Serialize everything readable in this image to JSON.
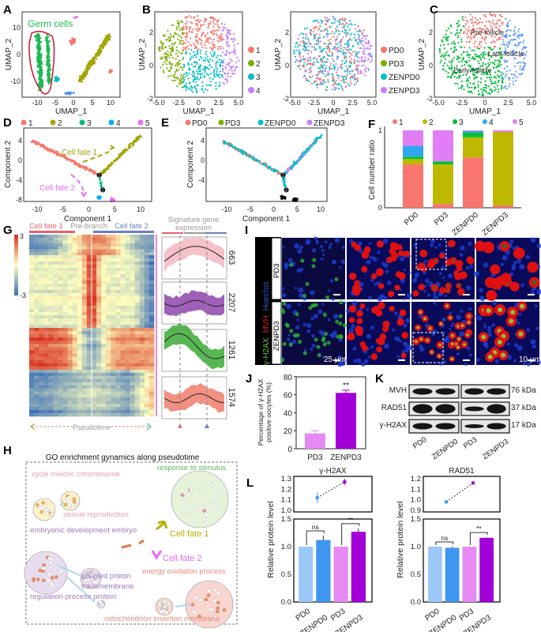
{
  "panel_labels": [
    "A",
    "B",
    "C",
    "D",
    "E",
    "F",
    "G",
    "H",
    "I",
    "J",
    "K",
    "L"
  ],
  "colors": {
    "c1": "#F8766D",
    "c2": "#A3A500",
    "c3": "#00BF7D",
    "c4": "#00B0F6",
    "c5": "#E76BF3",
    "b1": "#F8766D",
    "b2": "#7CAE00",
    "b3": "#00BFC4",
    "b4": "#C77CFF",
    "germ": "#1DB954",
    "heat_low": "#3B6FB6",
    "heat_mid": "#FFFFBF",
    "heat_high": "#D7301F"
  },
  "panel_a": {
    "annotation": "Germ cells",
    "xlabel": "UMAP_1",
    "ylabel": "UMAP_2",
    "xticks": [
      "-10",
      "-5",
      "0",
      "5",
      "10"
    ],
    "yticks": [
      "10",
      "0",
      "-10"
    ]
  },
  "panel_b": {
    "xlabel": "UMAP_1",
    "ylabel": "UMAP_2",
    "xticks": [
      "-5.0",
      "-2.5",
      "0",
      "2.5",
      "5.0"
    ],
    "yticks": [
      "2",
      "0",
      "-2"
    ],
    "legend_cluster": [
      "1",
      "2",
      "3",
      "4"
    ],
    "legend_sample": [
      "PD0",
      "PD3",
      "ZENPD0",
      "ZENPD3"
    ]
  },
  "panel_c": {
    "xlabel": "UMAP_1",
    "ylabel": "UMAP_2",
    "labels": [
      "Pre-follicle",
      "Late-follicle",
      "Early-follicle"
    ]
  },
  "panel_d": {
    "legend": [
      "1",
      "2",
      "3",
      "4",
      "5"
    ],
    "fate1": "Cell fate 1",
    "fate2": "Cell fate 2",
    "xlabel": "Component 1",
    "ylabel": "Component 2",
    "xticks": [
      "-10",
      "-5",
      "0",
      "5",
      "10"
    ],
    "yticks": [
      "4",
      "0",
      "-4",
      "-8"
    ],
    "branch_labels": [
      "1",
      "2"
    ]
  },
  "panel_e": {
    "legend": [
      "PD0",
      "PD3",
      "ZENPD0",
      "ZENPD3"
    ],
    "xlabel": "Component 1",
    "ylabel": "Component 2",
    "xticks": [
      "-10",
      "-5",
      "0",
      "5",
      "10"
    ],
    "yticks": [
      "4",
      "0",
      "-4"
    ]
  },
  "panel_g": {
    "header_fate1": "Cell fate 1",
    "header_pre": "Pre-branch",
    "header_fate2": "Cell fate 2",
    "colorbar_max": "3",
    "colorbar_min": "-3",
    "signature_title_1": "Signature gene",
    "signature_title_2": "expression",
    "cluster_counts": [
      "663",
      "2207",
      "1261",
      "1574"
    ],
    "cluster_colors": [
      "#F4B6C2",
      "#8E44AD",
      "#3AAA35",
      "#F07D6B"
    ],
    "pseudotime": "Pseudotime"
  },
  "panel_h": {
    "title": "GO enrichment gynamics along pseudotime",
    "terms": [
      "cycle meiotic chromosome",
      "sexual reproduction",
      "embryonic development embryo",
      "coupled proton",
      "transmembrane",
      "regulation process protein",
      "response to stimulus",
      "Cell fate 1",
      "Cell fate 2",
      "energy oxidation process",
      "mitochondrion insertion membrane"
    ]
  },
  "panel_i": {
    "channels": [
      "Hoechst",
      "MVH",
      "γ-H2AX"
    ],
    "rows": [
      "PD3",
      "ZENPD3"
    ],
    "scale_bar_1": "25 µm",
    "scale_bar_2": "10 µm"
  },
  "panel_k": {
    "proteins": [
      {
        "name": "MVH",
        "kda": "76 kDa"
      },
      {
        "name": "RAD51",
        "kda": "37 kDa"
      },
      {
        "name": "γ-H2AX",
        "kda": "17 kDa"
      }
    ],
    "lanes": [
      "PD0",
      "ZENPD0",
      "PD3",
      "ZENPD3"
    ]
  },
  "chart_data": [
    {
      "id": "F",
      "type": "bar",
      "stacked": true,
      "ylabel": "Cell number ratio",
      "ylim": [
        0,
        1
      ],
      "yticks": [
        "0",
        "1"
      ],
      "categories": [
        "PD0",
        "PD3",
        "ZENPD0",
        "ZENPD3"
      ],
      "legend": "top",
      "series": [
        {
          "name": "1",
          "color": "#F8766D",
          "values": [
            0.56,
            0.05,
            0.65,
            0.03
          ]
        },
        {
          "name": "2",
          "color": "#BDB800",
          "values": [
            0.07,
            0.51,
            0.26,
            0.95
          ]
        },
        {
          "name": "3",
          "color": "#00C030",
          "values": [
            0.03,
            0.04,
            0.06,
            0.0
          ]
        },
        {
          "name": "4",
          "color": "#2FA7F0",
          "values": [
            0.14,
            0.0,
            0.02,
            0.0
          ]
        },
        {
          "name": "5",
          "color": "#E27EF5",
          "values": [
            0.2,
            0.4,
            0.01,
            0.02
          ]
        }
      ]
    },
    {
      "id": "J",
      "type": "bar",
      "ylabel": "Percentage of γ-H2AX positive oocytes (%)",
      "ylim": [
        0,
        80
      ],
      "yticks": [
        "0",
        "20",
        "40",
        "60",
        "80"
      ],
      "categories": [
        "PD3",
        "ZENPD3"
      ],
      "values": [
        17,
        62
      ],
      "errors": [
        3,
        3
      ],
      "colors": [
        "#E58AF2",
        "#A100D6"
      ],
      "significance": "**"
    },
    {
      "id": "L-gH2AX",
      "type": "bar",
      "title": "γ-H2AX",
      "ylabel": "Relative protein level",
      "categories": [
        "PD0",
        "ZENPD0",
        "PD3",
        "ZENPD3"
      ],
      "values": [
        1.0,
        1.12,
        1.0,
        1.27
      ],
      "errors": [
        0,
        0.08,
        0,
        0.06
      ],
      "colors": [
        "#9CC8F7",
        "#3D96F0",
        "#E58AF2",
        "#A100D6"
      ],
      "ylim": [
        0,
        1.5
      ],
      "yticks": [
        "0.0",
        "0.5",
        "1.0",
        "1.5"
      ],
      "significance": [
        {
          "pair": [
            "PD0",
            "ZENPD0"
          ],
          "label": "ns"
        },
        {
          "pair": [
            "PD3",
            "ZENPD3"
          ],
          "label": "**"
        }
      ],
      "inset": {
        "type": "line",
        "x": [
          "ZENPD0",
          "ZENPD3"
        ],
        "values": [
          1.12,
          1.27
        ],
        "errors": [
          0.05,
          0.03
        ],
        "ylim": [
          1.0,
          1.3
        ],
        "yticks": [
          "1.0",
          "1.1",
          "1.2",
          "1.3"
        ]
      }
    },
    {
      "id": "L-RAD51",
      "type": "bar",
      "title": "RAD51",
      "ylabel": "Relative protein level",
      "categories": [
        "PD0",
        "ZENPD0",
        "PD3",
        "ZENPD3"
      ],
      "values": [
        1.0,
        0.98,
        1.0,
        1.16
      ],
      "errors": [
        0,
        0.02,
        0,
        0.01
      ],
      "colors": [
        "#9CC8F7",
        "#3D96F0",
        "#E58AF2",
        "#A100D6"
      ],
      "ylim": [
        0,
        1.5
      ],
      "yticks": [
        "0.0",
        "0.5",
        "1.0",
        "1.5"
      ],
      "significance": [
        {
          "pair": [
            "PD0",
            "ZENPD0"
          ],
          "label": "ns"
        },
        {
          "pair": [
            "PD3",
            "ZENPD3"
          ],
          "label": "**"
        }
      ],
      "inset": {
        "type": "line",
        "x": [
          "ZENPD0",
          "ZENPD3"
        ],
        "values": [
          0.98,
          1.16
        ],
        "errors": [
          0.01,
          0.01
        ],
        "ylim": [
          0.9,
          1.2
        ],
        "yticks": [
          "0.9",
          "1.0",
          "1.1",
          "1.2"
        ]
      }
    }
  ]
}
